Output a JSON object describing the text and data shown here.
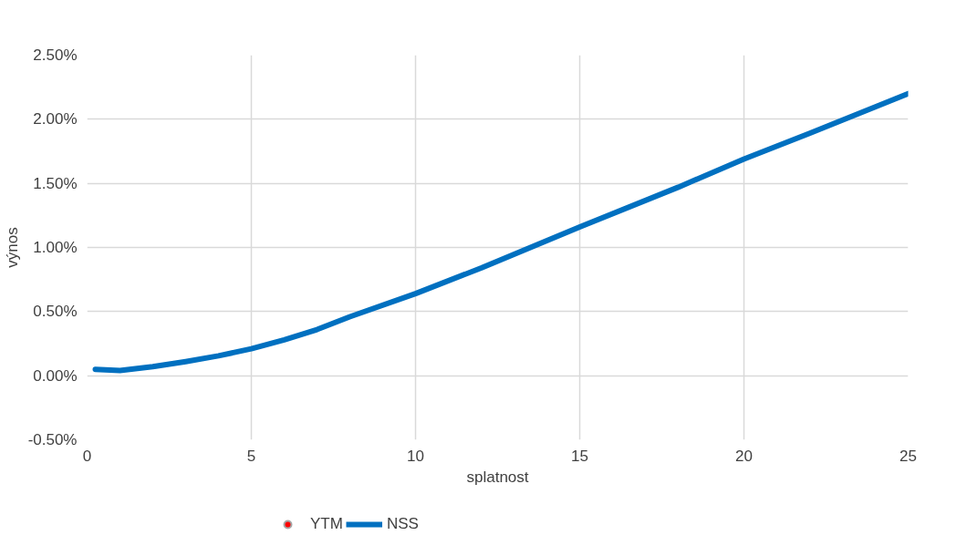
{
  "chart_data": {
    "type": "line",
    "xlabel": "splatnost",
    "ylabel": "výnos",
    "xlim": [
      0,
      25
    ],
    "xticks": [
      0,
      5,
      10,
      15,
      20,
      25
    ],
    "ylim": [
      -0.5,
      2.5
    ],
    "yticks": [
      {
        "value": -0.5,
        "label": "-0.50%"
      },
      {
        "value": 0,
        "label": "0.00%"
      },
      {
        "value": 0.5,
        "label": "0.50%"
      },
      {
        "value": 1,
        "label": "1.00%"
      },
      {
        "value": 1.5,
        "label": "1.50%"
      },
      {
        "value": 2,
        "label": "2.00%"
      },
      {
        "value": 2.5,
        "label": "2.50%"
      }
    ],
    "grid": true,
    "legend": "bottom",
    "series": [
      {
        "name": "YTM",
        "type": "scatter",
        "marker": "circle",
        "color": "#ff0000"
      },
      {
        "name": "NSS",
        "marker": "none",
        "color": "#0070c0",
        "x": [
          0.25,
          1,
          2,
          3,
          4,
          5,
          6,
          7,
          8,
          10,
          12,
          15,
          18,
          20,
          22,
          25
        ],
        "values": [
          0.05,
          0.04,
          0.07,
          0.11,
          0.155,
          0.21,
          0.28,
          0.36,
          0.46,
          0.64,
          0.84,
          1.16,
          1.47,
          1.69,
          1.89,
          2.2
        ]
      }
    ]
  }
}
